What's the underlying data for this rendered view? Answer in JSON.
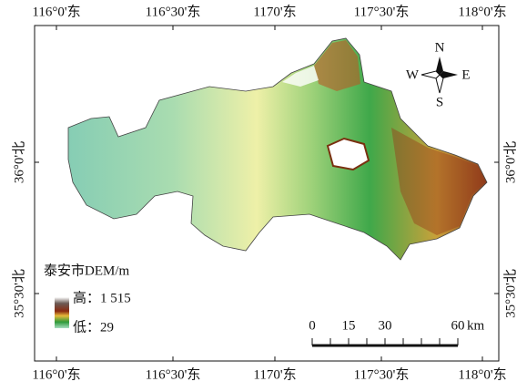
{
  "map": {
    "x_ticks": [
      "116°0'东",
      "116°30'东",
      "1170'东",
      "117°30'东",
      "118°0'东"
    ],
    "y_ticks": [
      "36°0'北",
      "35°30'北"
    ],
    "legend": {
      "title": "泰安市DEM/m",
      "high_label": "高：",
      "high": "1 515",
      "low_label": "低：",
      "low": "29"
    },
    "scale_bar": {
      "labels": [
        "0",
        "15",
        "30",
        "60"
      ],
      "unit": "km"
    },
    "compass": {
      "north": "N",
      "south": "S",
      "west": "W",
      "east": "E"
    }
  }
}
